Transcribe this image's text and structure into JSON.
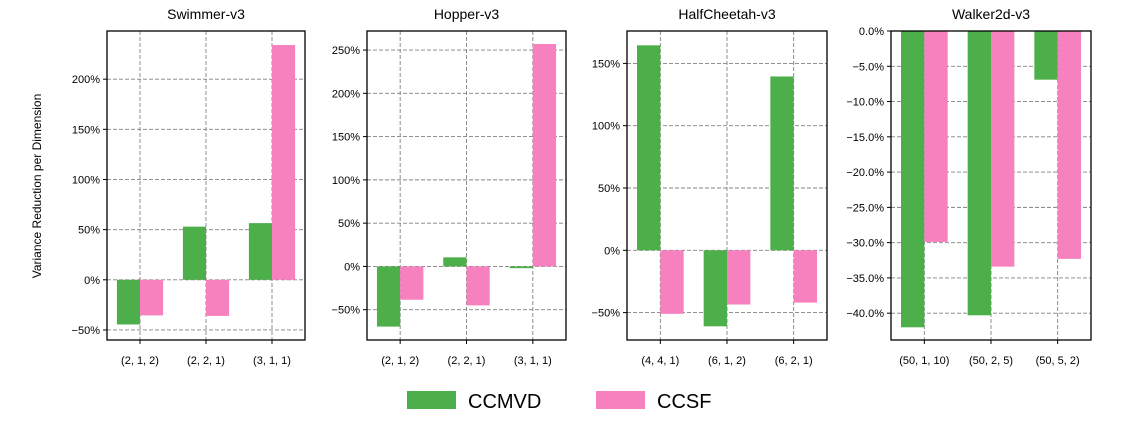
{
  "figure": {
    "ylabel": "Variance Reduction per Dimension"
  },
  "colors": {
    "CCMVD": "#4daf4a",
    "CCSF": "#f781bf",
    "grid": "#808080",
    "axis": "#000000"
  },
  "legend": {
    "placement": "bottom-center",
    "items": [
      {
        "label": "CCMVD",
        "color": "#4daf4a"
      },
      {
        "label": "CCSF",
        "color": "#f781bf"
      }
    ]
  },
  "chart_data": [
    {
      "type": "bar",
      "title": "Swimmer-v3",
      "categories": [
        "(2, 1, 2)",
        "(2, 2, 1)",
        "(3, 1, 1)"
      ],
      "series": [
        {
          "name": "CCMVD",
          "values": [
            -44.5,
            53,
            56.5
          ]
        },
        {
          "name": "CCSF",
          "values": [
            -35.5,
            -36,
            234
          ]
        }
      ],
      "ylim": [
        -60,
        248
      ],
      "yticks": [
        -50,
        0,
        50,
        100,
        150,
        200
      ],
      "ytick_labels": [
        "−50%",
        "0%",
        "50%",
        "100%",
        "150%",
        "200%"
      ],
      "grid": true
    },
    {
      "type": "bar",
      "title": "Hopper-v3",
      "categories": [
        "(2, 1, 2)",
        "(2, 2, 1)",
        "(3, 1, 1)"
      ],
      "series": [
        {
          "name": "CCMVD",
          "values": [
            -69.5,
            10.5,
            -2
          ]
        },
        {
          "name": "CCSF",
          "values": [
            -38.5,
            -45,
            257
          ]
        }
      ],
      "ylim": [
        -85,
        272
      ],
      "yticks": [
        -50,
        0,
        50,
        100,
        150,
        200,
        250
      ],
      "ytick_labels": [
        "−50%",
        "0%",
        "50%",
        "100%",
        "150%",
        "200%",
        "250%"
      ],
      "grid": true
    },
    {
      "type": "bar",
      "title": "HalfCheetah-v3",
      "categories": [
        "(4, 4, 1)",
        "(6, 1, 2)",
        "(6, 2, 1)"
      ],
      "series": [
        {
          "name": "CCMVD",
          "values": [
            164.5,
            -61,
            139.5
          ]
        },
        {
          "name": "CCSF",
          "values": [
            -51,
            -43.5,
            -42
          ]
        }
      ],
      "ylim": [
        -72,
        176
      ],
      "yticks": [
        -50,
        0,
        50,
        100,
        150
      ],
      "ytick_labels": [
        "−50%",
        "0%",
        "50%",
        "100%",
        "150%"
      ],
      "grid": true
    },
    {
      "type": "bar",
      "title": "Walker2d-v3",
      "categories": [
        "(50, 1, 10)",
        "(50, 2, 5)",
        "(50, 5, 2)"
      ],
      "series": [
        {
          "name": "CCMVD",
          "values": [
            -42,
            -40.3,
            -6.9
          ]
        },
        {
          "name": "CCSF",
          "values": [
            -29.9,
            -33.4,
            -32.3
          ]
        }
      ],
      "ylim": [
        -43.8,
        0
      ],
      "yticks": [
        0,
        -5,
        -10,
        -15,
        -20,
        -25,
        -30,
        -35,
        -40
      ],
      "ytick_labels": [
        "0.0%",
        "−5.0%",
        "−10.0%",
        "−15.0%",
        "−20.0%",
        "−25.0%",
        "−30.0%",
        "−35.0%",
        "−40.0%"
      ],
      "grid": true
    }
  ]
}
